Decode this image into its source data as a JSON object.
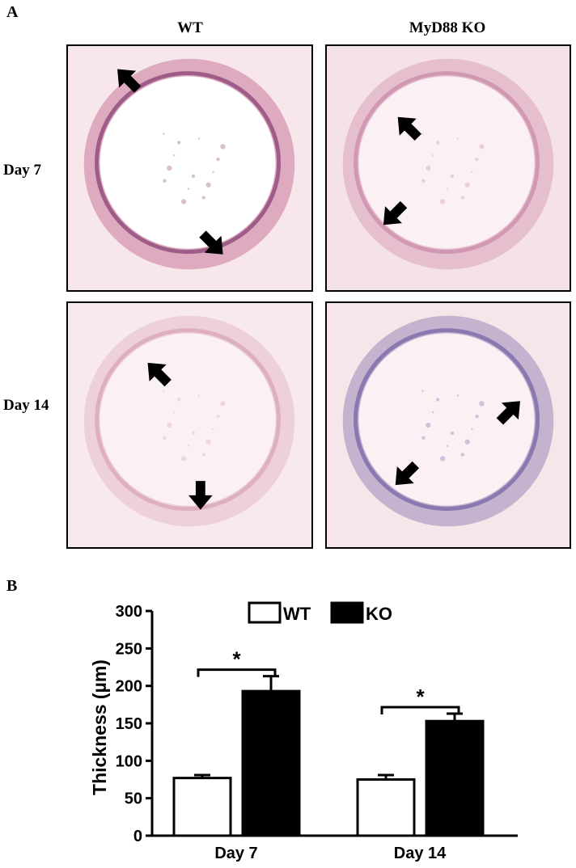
{
  "figure": {
    "panel_a_letter": "A",
    "panel_b_letter": "B",
    "columns": [
      "WT",
      "MyD88 KO"
    ],
    "rows": [
      "Day 7",
      "Day 14"
    ],
    "micrographs": [
      {
        "name": "wt-day7",
        "bg": "#f7e6ea",
        "ring": "#c9789a",
        "ring2": "#8e4a7a",
        "arrows": [
          "up-left",
          "down-right"
        ]
      },
      {
        "name": "ko-day7",
        "bg": "#f5e2e8",
        "ring": "#d9a3b9",
        "ring2": "#cc8fab",
        "arrows": [
          "up-left",
          "down-left"
        ]
      },
      {
        "name": "wt-day14",
        "bg": "#f8eaec",
        "ring": "#e6b9c9",
        "ring2": "#d9a6ba",
        "arrows": [
          "up-left",
          "down"
        ]
      },
      {
        "name": "ko-day14",
        "bg": "#f6e6ea",
        "ring": "#9a86b8",
        "ring2": "#7a6aa8",
        "arrows": [
          "up-right",
          "down-left"
        ]
      }
    ]
  },
  "chart_data": {
    "type": "bar",
    "categories": [
      "Day 7",
      "Day 14"
    ],
    "series": [
      {
        "name": "WT",
        "values": [
          77,
          75
        ],
        "errors": [
          4,
          6
        ],
        "fill": "#ffffff"
      },
      {
        "name": "KO",
        "values": [
          193,
          153
        ],
        "errors": [
          20,
          10
        ],
        "fill": "#000000"
      }
    ],
    "ylabel": "Thickness (µm)",
    "ylim": [
      0,
      300
    ],
    "yticks": [
      0,
      50,
      100,
      150,
      200,
      250,
      300
    ],
    "significance": [
      "*",
      "*"
    ],
    "legend_position": "top",
    "grid": false
  }
}
